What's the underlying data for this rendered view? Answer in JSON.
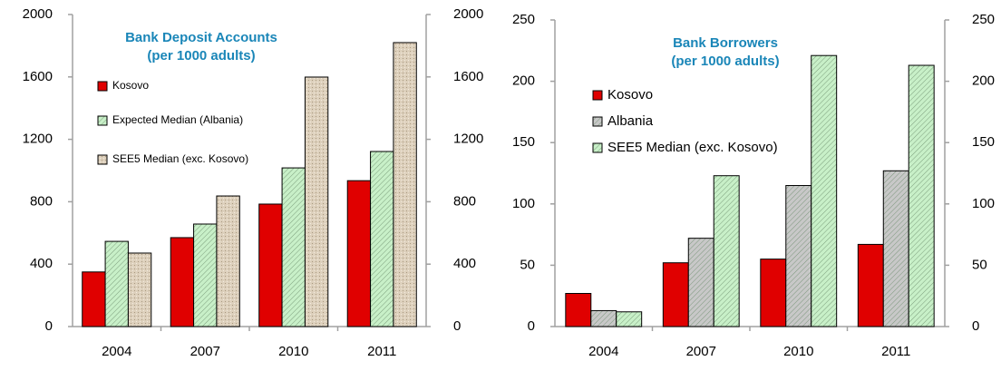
{
  "chart_data": [
    {
      "type": "bar",
      "title": "Bank Deposit Accounts",
      "subtitle": "(per 1000 adults)",
      "categories": [
        "2004",
        "2007",
        "2010",
        "2011"
      ],
      "series": [
        {
          "name": "Kosovo",
          "color": "#e00000",
          "pattern": "solid",
          "values": [
            350,
            570,
            785,
            935
          ]
        },
        {
          "name": "Expected Median (Albania)",
          "color": "#c8f0c8",
          "pattern": "hatch",
          "values": [
            546,
            657,
            1017,
            1122
          ]
        },
        {
          "name": "SEE5 Median (exc. Kosovo)",
          "color": "#ddd0bc",
          "pattern": "texture",
          "values": [
            471,
            837,
            1599,
            1820
          ]
        }
      ],
      "ylim": [
        0,
        2000
      ],
      "yticks": [
        0,
        400,
        800,
        1200,
        1600,
        2000
      ],
      "y2lim": [
        0,
        2000
      ],
      "y2ticks": [
        0,
        400,
        800,
        1200,
        1600,
        2000
      ]
    },
    {
      "type": "bar",
      "title": "Bank Borrowers",
      "subtitle": "(per 1000 adults)",
      "categories": [
        "2004",
        "2007",
        "2010",
        "2011"
      ],
      "series": [
        {
          "name": "Kosovo",
          "color": "#e00000",
          "pattern": "solid",
          "values": [
            27,
            52,
            55,
            67
          ]
        },
        {
          "name": "Albania",
          "color": "#c8c8c8",
          "pattern": "hatch",
          "values": [
            13,
            72,
            115,
            127
          ]
        },
        {
          "name": "SEE5 Median (exc. Kosovo)",
          "color": "#c8f0c8",
          "pattern": "hatch",
          "values": [
            12,
            123,
            221,
            213
          ]
        }
      ],
      "ylim": [
        0,
        250
      ],
      "yticks": [
        0,
        50,
        100,
        150,
        200,
        250
      ],
      "y2lim": [
        0,
        250
      ],
      "y2ticks": [
        0,
        50,
        100,
        150,
        200,
        250
      ]
    }
  ]
}
